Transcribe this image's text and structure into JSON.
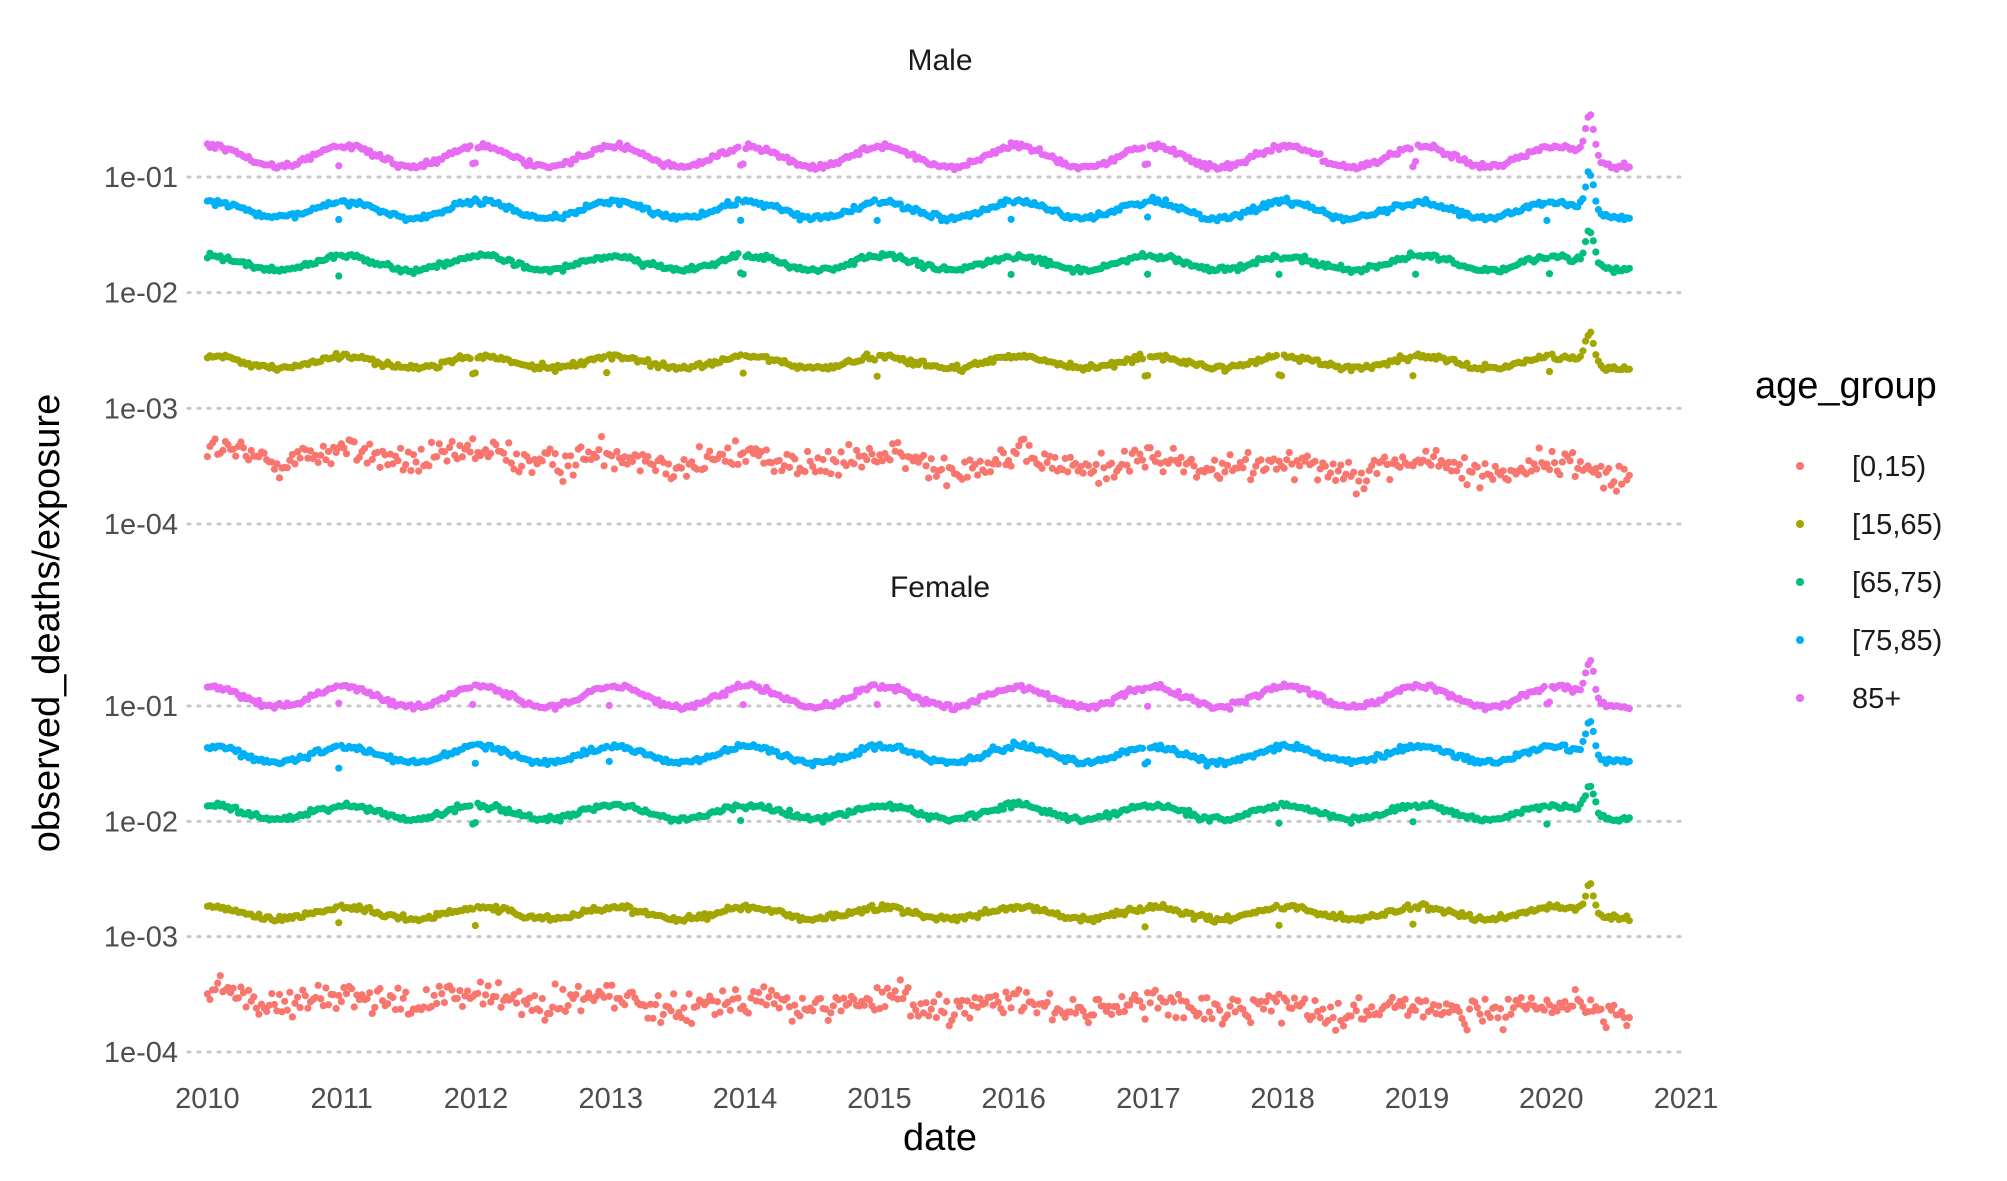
{
  "chart_data": {
    "type": "scatter",
    "facets": [
      "Male",
      "Female"
    ],
    "xlabel": "date",
    "ylabel": "observed_deaths/exposure",
    "x_ticks": [
      "2010",
      "2011",
      "2012",
      "2013",
      "2014",
      "2015",
      "2016",
      "2017",
      "2018",
      "2019",
      "2020",
      "2021"
    ],
    "xlim": [
      "2009-12-01",
      "2021-01-01"
    ],
    "y_scale": "log10",
    "y_ticks": [
      "1e-04",
      "1e-03",
      "1e-02",
      "1e-01"
    ],
    "ylim": [
      0.0001,
      0.35
    ],
    "grid": "horizontal major lines only, dotted",
    "legend": {
      "title": "age_group",
      "position": "right",
      "entries": [
        "[0,15)",
        "[15,65)",
        "[65,75)",
        "[75,85)",
        "85+"
      ]
    },
    "colors": {
      "[0,15)": "#F8766D",
      "[15,65)": "#A3A500",
      "[65,75)": "#00BF7D",
      "[75,85)": "#00B0F6",
      "85+": "#E76BF3"
    },
    "x_range_of_data": [
      "2010-01-01",
      "2020-08-01"
    ],
    "point_frequency": "weekly",
    "series": {
      "Male": [
        {
          "name": "[0,15)",
          "typical_value": 0.0004,
          "range": [
            0.00017,
            0.0006
          ]
        },
        {
          "name": "[15,65)",
          "typical_value": 0.0025,
          "range": [
            0.0017,
            0.0045
          ],
          "peak_2020_04": 0.0045
        },
        {
          "name": "[65,75)",
          "typical_value": 0.018,
          "range": [
            0.012,
            0.035
          ],
          "peak_2020_04": 0.035
        },
        {
          "name": "[75,85)",
          "typical_value": 0.052,
          "range": [
            0.035,
            0.11
          ],
          "peak_2020_04": 0.11
        },
        {
          "name": "85+",
          "typical_value": 0.15,
          "range": [
            0.11,
            0.35
          ],
          "peak_2020_04": 0.35
        }
      ],
      "Female": [
        {
          "name": "[0,15)",
          "typical_value": 0.0003,
          "range": [
            0.00014,
            0.00055
          ]
        },
        {
          "name": "[15,65)",
          "typical_value": 0.0016,
          "range": [
            0.0011,
            0.0028
          ],
          "peak_2020_04": 0.0028
        },
        {
          "name": "[65,75)",
          "typical_value": 0.012,
          "range": [
            0.009,
            0.021
          ],
          "peak_2020_04": 0.021
        },
        {
          "name": "[75,85)",
          "typical_value": 0.038,
          "range": [
            0.025,
            0.075
          ],
          "peak_2020_04": 0.075
        },
        {
          "name": "85+",
          "typical_value": 0.12,
          "range": [
            0.09,
            0.25
          ],
          "peak_2020_04": 0.25
        }
      ]
    }
  }
}
